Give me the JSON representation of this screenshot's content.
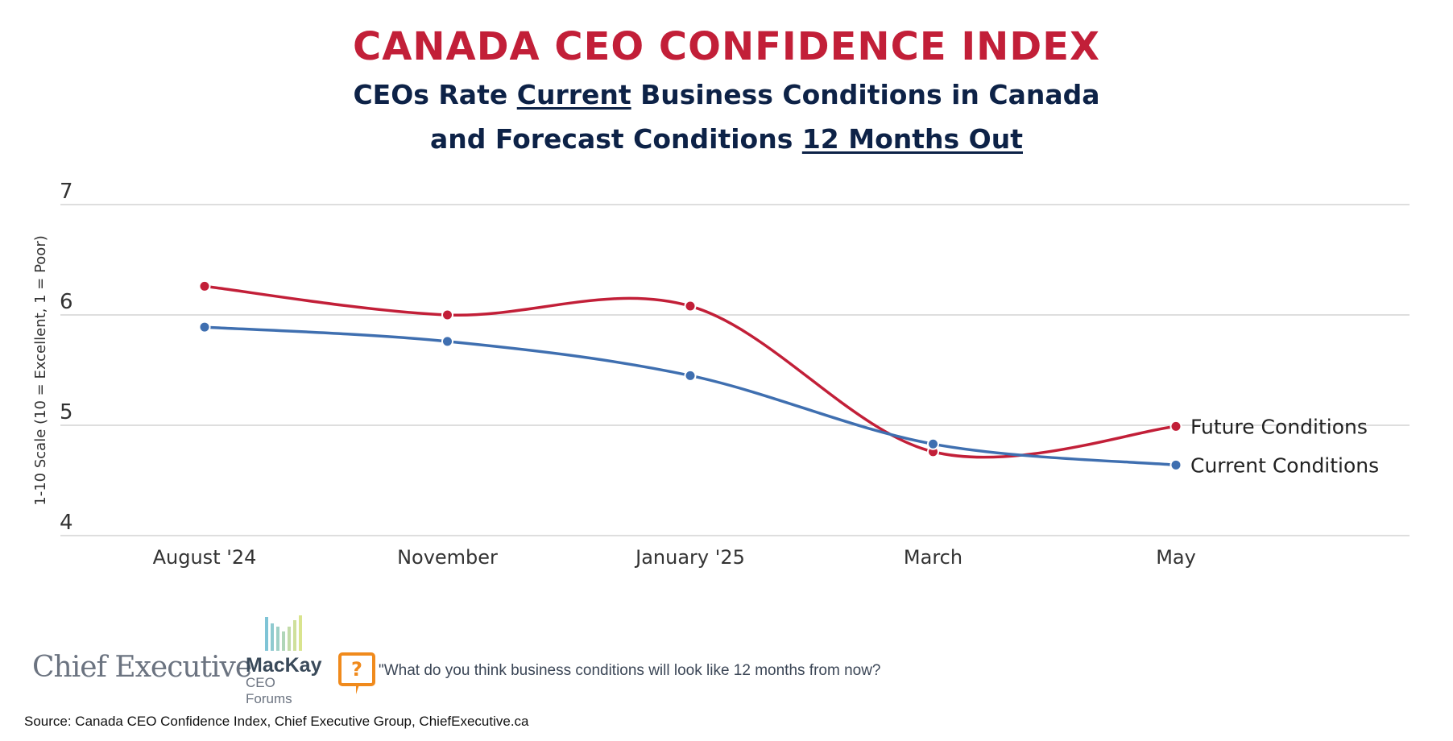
{
  "header": {
    "title": "CANADA CEO CONFIDENCE INDEX",
    "subtitle_line1_pre": "CEOs Rate ",
    "subtitle_line1_u": "Current",
    "subtitle_line1_post": " Business Conditions in Canada",
    "subtitle_line2_pre": "and Forecast Conditions ",
    "subtitle_line2_u": "12 Months Out"
  },
  "chart_data": {
    "type": "line",
    "title": "CANADA CEO CONFIDENCE INDEX",
    "ylabel": "1-10 Scale (10 = Excellent, 1 = Poor)",
    "xlabel": "",
    "categories": [
      "August '24",
      "November",
      "January '25",
      "March",
      "May"
    ],
    "ylim": [
      4,
      7
    ],
    "yticks": [
      "7",
      "6",
      "5",
      "4"
    ],
    "grid": true,
    "legend": "inline-right",
    "series": [
      {
        "name": "Future Conditions",
        "color": "#c21f38",
        "values": [
          6.26,
          6.0,
          6.08,
          4.76,
          4.99
        ]
      },
      {
        "name": "Current Conditions",
        "color": "#3f6fb0",
        "values": [
          5.89,
          5.76,
          5.45,
          4.83,
          4.64
        ]
      }
    ]
  },
  "footer": {
    "logo_chief_executive": "Chief Executive",
    "logo_mackay": "MacKay",
    "logo_mackay_sub": "CEO Forums",
    "question_icon": "question-speech-bubble-icon",
    "question": "\"What do you think business conditions will look like 12 months from now?",
    "source": "Source: Canada CEO Confidence Index, Chief Executive Group, ChiefExecutive.ca"
  }
}
